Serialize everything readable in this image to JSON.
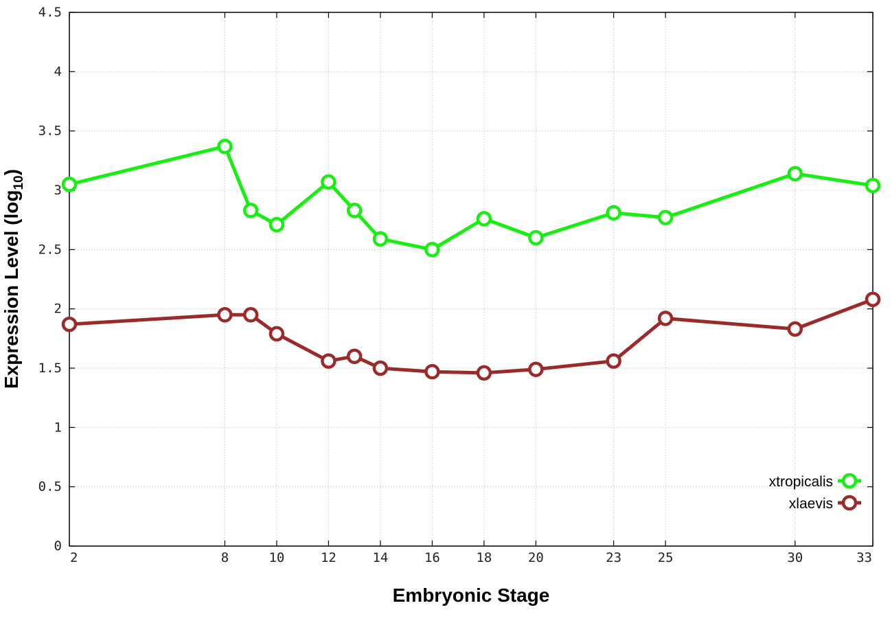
{
  "chart_data": {
    "type": "line",
    "title": "",
    "xlabel": "Embryonic Stage",
    "ylabel_main": "Expression Level (log",
    "ylabel_sub": "10",
    "ylabel_close": ")",
    "xlim": [
      2,
      33
    ],
    "ylim": [
      0,
      4.5
    ],
    "x_ticks": [
      2,
      8,
      10,
      12,
      14,
      16,
      18,
      20,
      23,
      25,
      30,
      33
    ],
    "x_tick_labels": [
      "2",
      "8",
      "10",
      "12",
      "14",
      "16",
      "18",
      "20",
      "23",
      "25",
      "30",
      "33"
    ],
    "y_ticks": [
      0,
      0.5,
      1,
      1.5,
      2,
      2.5,
      3,
      3.5,
      4,
      4.5
    ],
    "y_tick_labels": [
      "0",
      "0.5",
      "1",
      "1.5",
      "2",
      "2.5",
      "3",
      "3.5",
      "4",
      "4.5"
    ],
    "grid": true,
    "legend_position": "bottom-right",
    "series": [
      {
        "name": "xtropicalis",
        "color": "#19ee13",
        "x": [
          2,
          8,
          9,
          10,
          12,
          13,
          14,
          16,
          18,
          20,
          23,
          25,
          30,
          33
        ],
        "y": [
          3.05,
          3.37,
          2.83,
          2.71,
          3.07,
          2.83,
          2.59,
          2.5,
          2.76,
          2.6,
          2.81,
          2.77,
          3.14,
          3.04
        ]
      },
      {
        "name": "xlaevis",
        "color": "#9b2b2b",
        "x": [
          2,
          8,
          9,
          10,
          12,
          13,
          14,
          16,
          18,
          20,
          23,
          25,
          30,
          33
        ],
        "y": [
          1.87,
          1.95,
          1.95,
          1.79,
          1.56,
          1.6,
          1.5,
          1.47,
          1.46,
          1.49,
          1.56,
          1.92,
          1.83,
          2.08
        ]
      }
    ]
  }
}
